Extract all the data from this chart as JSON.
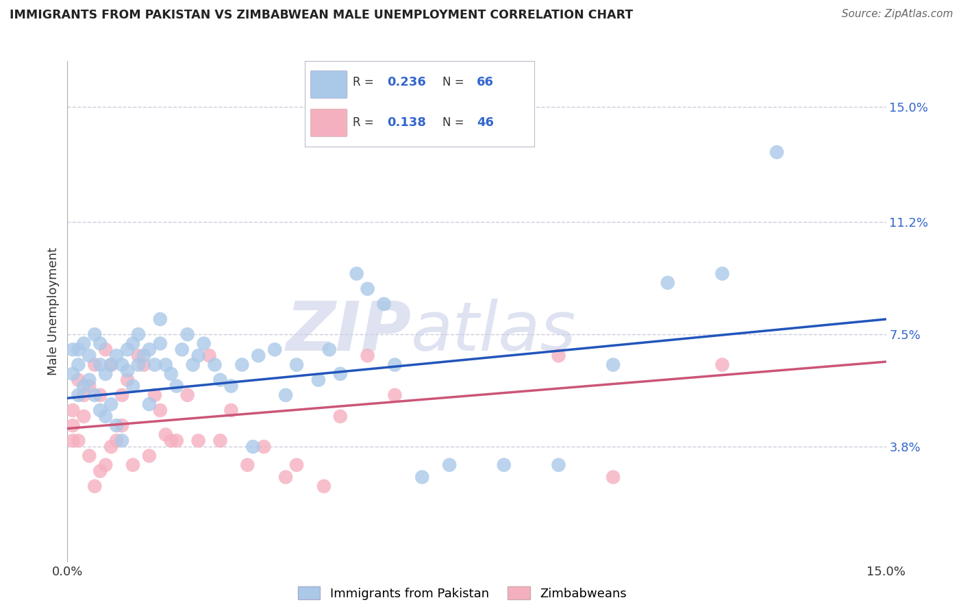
{
  "title": "IMMIGRANTS FROM PAKISTAN VS ZIMBABWEAN MALE UNEMPLOYMENT CORRELATION CHART",
  "source": "Source: ZipAtlas.com",
  "ylabel": "Male Unemployment",
  "watermark": "ZIPatlas",
  "legend_blue_R": "0.236",
  "legend_blue_N": "66",
  "legend_pink_R": "0.138",
  "legend_pink_N": "46",
  "blue_color": "#aac8e8",
  "pink_color": "#f5b0c0",
  "blue_line_color": "#2255bb",
  "pink_line_color": "#cc5577",
  "background_color": "#ffffff",
  "grid_color": "#ccccdd",
  "ytick_values": [
    0.038,
    0.075,
    0.112,
    0.15
  ],
  "ytick_labels": [
    "3.8%",
    "7.5%",
    "11.2%",
    "15.0%"
  ],
  "xlim": [
    0.0,
    0.15
  ],
  "ylim": [
    0.0,
    0.165
  ],
  "blue_line_x": [
    0.0,
    0.15
  ],
  "blue_line_y": [
    0.054,
    0.08
  ],
  "pink_line_x": [
    0.0,
    0.15
  ],
  "pink_line_y": [
    0.044,
    0.066
  ],
  "blue_x": [
    0.001,
    0.001,
    0.002,
    0.002,
    0.002,
    0.003,
    0.003,
    0.004,
    0.004,
    0.005,
    0.005,
    0.006,
    0.006,
    0.006,
    0.007,
    0.007,
    0.008,
    0.008,
    0.009,
    0.009,
    0.01,
    0.01,
    0.011,
    0.011,
    0.012,
    0.012,
    0.013,
    0.013,
    0.014,
    0.015,
    0.015,
    0.016,
    0.017,
    0.017,
    0.018,
    0.019,
    0.02,
    0.021,
    0.022,
    0.023,
    0.024,
    0.025,
    0.027,
    0.028,
    0.03,
    0.032,
    0.034,
    0.035,
    0.038,
    0.04,
    0.042,
    0.046,
    0.048,
    0.05,
    0.053,
    0.055,
    0.058,
    0.06,
    0.065,
    0.07,
    0.08,
    0.09,
    0.1,
    0.11,
    0.12,
    0.13
  ],
  "blue_y": [
    0.062,
    0.07,
    0.055,
    0.065,
    0.07,
    0.058,
    0.072,
    0.06,
    0.068,
    0.055,
    0.075,
    0.05,
    0.065,
    0.072,
    0.048,
    0.062,
    0.052,
    0.065,
    0.045,
    0.068,
    0.04,
    0.065,
    0.063,
    0.07,
    0.058,
    0.072,
    0.075,
    0.065,
    0.068,
    0.052,
    0.07,
    0.065,
    0.08,
    0.072,
    0.065,
    0.062,
    0.058,
    0.07,
    0.075,
    0.065,
    0.068,
    0.072,
    0.065,
    0.06,
    0.058,
    0.065,
    0.038,
    0.068,
    0.07,
    0.055,
    0.065,
    0.06,
    0.07,
    0.062,
    0.095,
    0.09,
    0.085,
    0.065,
    0.028,
    0.032,
    0.032,
    0.032,
    0.065,
    0.092,
    0.095,
    0.135
  ],
  "pink_x": [
    0.001,
    0.001,
    0.001,
    0.002,
    0.002,
    0.003,
    0.003,
    0.004,
    0.004,
    0.005,
    0.005,
    0.006,
    0.006,
    0.007,
    0.007,
    0.008,
    0.008,
    0.009,
    0.01,
    0.01,
    0.011,
    0.012,
    0.013,
    0.014,
    0.015,
    0.016,
    0.017,
    0.018,
    0.019,
    0.02,
    0.022,
    0.024,
    0.026,
    0.028,
    0.03,
    0.033,
    0.036,
    0.04,
    0.042,
    0.047,
    0.05,
    0.055,
    0.06,
    0.09,
    0.1,
    0.12
  ],
  "pink_y": [
    0.05,
    0.045,
    0.04,
    0.06,
    0.04,
    0.048,
    0.055,
    0.035,
    0.058,
    0.025,
    0.065,
    0.03,
    0.055,
    0.032,
    0.07,
    0.065,
    0.038,
    0.04,
    0.055,
    0.045,
    0.06,
    0.032,
    0.068,
    0.065,
    0.035,
    0.055,
    0.05,
    0.042,
    0.04,
    0.04,
    0.055,
    0.04,
    0.068,
    0.04,
    0.05,
    0.032,
    0.038,
    0.028,
    0.032,
    0.025,
    0.048,
    0.068,
    0.055,
    0.068,
    0.028,
    0.065
  ]
}
